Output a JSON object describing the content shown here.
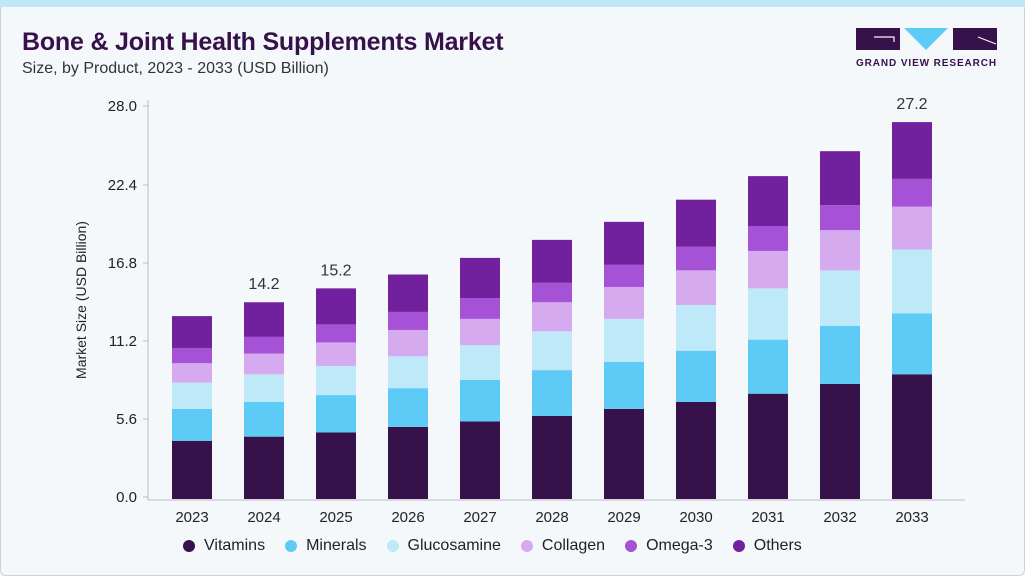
{
  "chart_data": {
    "type": "bar",
    "stacked": true,
    "title": "Bone & Joint Health Supplements Market",
    "subtitle": "Size, by Product, 2023 - 2033 (USD Billion)",
    "xlabel": "",
    "ylabel": "Market Size (USD Billion)",
    "ylim": [
      0,
      28
    ],
    "yticks": [
      "0.0",
      "5.6",
      "11.2",
      "16.8",
      "22.4",
      "28.0"
    ],
    "grid": false,
    "legend_position": "bottom",
    "categories": [
      "2023",
      "2024",
      "2025",
      "2026",
      "2027",
      "2028",
      "2029",
      "2030",
      "2031",
      "2032",
      "2033"
    ],
    "series": [
      {
        "name": "Vitamins",
        "color": "#37114a",
        "values": [
          4.2,
          4.5,
          4.8,
          5.2,
          5.6,
          6.0,
          6.5,
          7.0,
          7.6,
          8.3,
          9.0
        ]
      },
      {
        "name": "Minerals",
        "color": "#5ecbf6",
        "values": [
          2.3,
          2.5,
          2.7,
          2.8,
          3.0,
          3.3,
          3.4,
          3.7,
          3.9,
          4.2,
          4.4
        ]
      },
      {
        "name": "Glucosamine",
        "color": "#bde9f9",
        "values": [
          1.9,
          2.0,
          2.1,
          2.3,
          2.5,
          2.8,
          3.1,
          3.3,
          3.7,
          4.0,
          4.6
        ]
      },
      {
        "name": "Collagen",
        "color": "#d5aaee",
        "values": [
          1.4,
          1.5,
          1.7,
          1.9,
          1.9,
          2.1,
          2.3,
          2.5,
          2.7,
          2.9,
          3.1
        ]
      },
      {
        "name": "Omega-3",
        "color": "#a652d6",
        "values": [
          1.1,
          1.2,
          1.3,
          1.3,
          1.5,
          1.4,
          1.6,
          1.7,
          1.8,
          1.8,
          2.0
        ]
      },
      {
        "name": "Others",
        "color": "#71219e",
        "values": [
          2.3,
          2.5,
          2.6,
          2.7,
          2.9,
          3.1,
          3.1,
          3.4,
          3.6,
          3.9,
          4.1
        ]
      }
    ],
    "data_labels": [
      {
        "category": "2024",
        "text": "14.2"
      },
      {
        "category": "2025",
        "text": "15.2"
      },
      {
        "category": "2033",
        "text": "27.2"
      }
    ]
  },
  "brand": {
    "name": "GRAND VIEW RESEARCH",
    "colors": {
      "dark": "#37114a",
      "light": "#5ecbf6"
    }
  }
}
